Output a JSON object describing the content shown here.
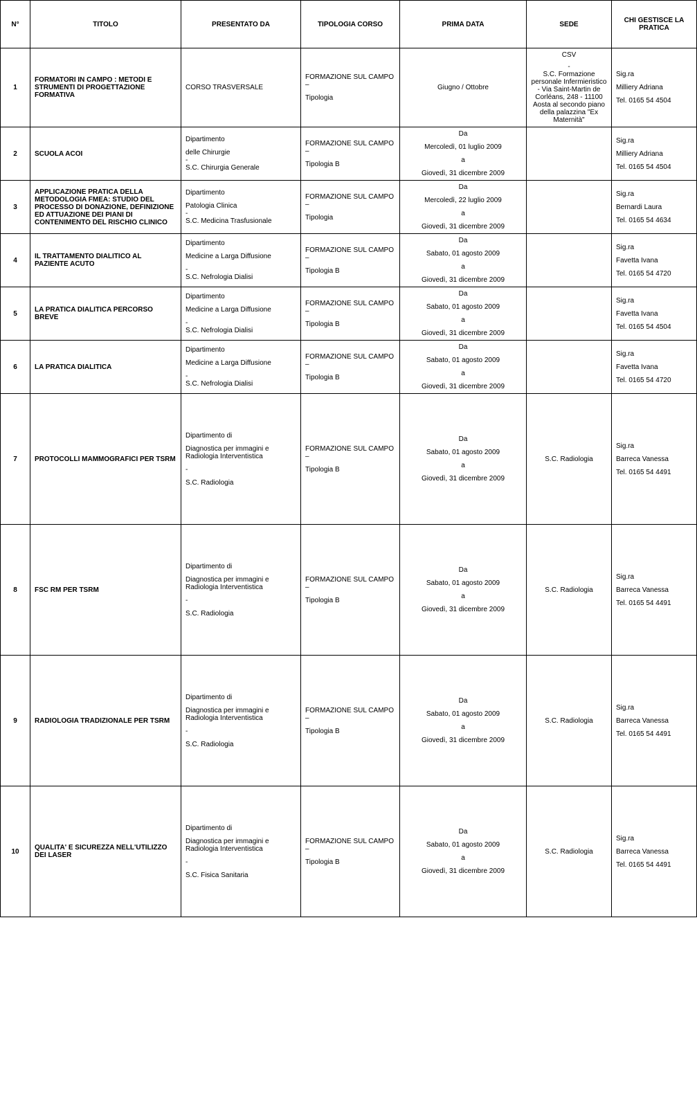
{
  "headers": {
    "n": "N°",
    "titolo": "TITOLO",
    "presentato": "PRESENTATO DA",
    "tipologia": "TIPOLOGIA CORSO",
    "prima": "PRIMA DATA",
    "sede": "SEDE",
    "chi": "CHI GESTISCE LA PRATICA"
  },
  "common": {
    "da": "Da",
    "a": "a",
    "end": "Giovedì, 31 dicembre 2009",
    "fsc": "FORMAZIONE SUL CAMPO –",
    "tipB": "Tipologia  B",
    "tip": "Tipologia",
    "dip": "Dipartimento",
    "dipDi": "Dipartimento di",
    "mld": "Medicine a Larga Diffusione",
    "dash": "-",
    "nefro": "S.C. Nefrologia Dialisi",
    "diag1": "Diagnostica per immagini e",
    "diag2": "Radiologia Interventistica",
    "radiologia": "S.C. Radiologia",
    "sigra": "Sig.ra"
  },
  "rows": [
    {
      "n": "1",
      "titolo": "FORMATORI IN CAMPO : METODI E STRUMENTI DI PROGETTAZIONE FORMATIVA",
      "pres_single": "CORSO TRASVERSALE",
      "tip_sub": "Tipologia",
      "prima_single": "Giugno / Ottobre",
      "sede_lines": [
        "CSV",
        "",
        "-",
        "S.C. Formazione personale Infermieristico - Via Saint-Martin de Corléans, 248 - 11100 Aosta al secondo piano della palazzina \"Ex Maternità\""
      ],
      "chi_name": "Milliery Adriana",
      "chi_tel": "Tel. 0165 54 4504"
    },
    {
      "n": "2",
      "titolo": "SCUOLA ACOI",
      "pres_lines": [
        "Dipartimento",
        "",
        "delle Chirurgie",
        "-",
        "S.C. Chirurgia Generale"
      ],
      "tip_sub": "Tipologia  B",
      "start": "Mercoledì, 01 luglio 2009",
      "chi_name": "Milliery Adriana",
      "chi_tel": "Tel. 0165 54 4504"
    },
    {
      "n": "3",
      "titolo": "APPLICAZIONE PRATICA DELLA METODOLOGIA FMEA: STUDIO DEL PROCESSO DI DONAZIONE, DEFINIZIONE ED ATTUAZIONE DEI PIANI DI CONTENIMENTO DEL RISCHIO CLINICO",
      "pres_lines": [
        "Dipartimento",
        "",
        "Patologia Clinica",
        "-",
        "S.C. Medicina Trasfusionale"
      ],
      "tip_sub": "Tipologia",
      "start": "Mercoledì, 22 luglio 2009",
      "chi_name": "Bernardi Laura",
      "chi_tel": "Tel. 0165 54 4634"
    },
    {
      "n": "4",
      "titolo": "IL TRATTAMENTO DIALITICO AL PAZIENTE ACUTO",
      "pres_mld": true,
      "tip_sub": "Tipologia  B",
      "start": "Sabato, 01 agosto 2009",
      "chi_name": "Favetta Ivana",
      "chi_tel": "Tel. 0165 54 4720"
    },
    {
      "n": "5",
      "titolo": "LA PRATICA DIALITICA PERCORSO BREVE",
      "pres_mld": true,
      "tip_sub": "Tipologia  B",
      "start": "Sabato, 01 agosto 2009",
      "chi_name": "Favetta Ivana",
      "chi_tel": "Tel. 0165 54 4504"
    },
    {
      "n": "6",
      "titolo": "LA PRATICA DIALITICA",
      "pres_mld": true,
      "tip_sub": "Tipologia  B",
      "start": "Sabato, 01 agosto 2009",
      "chi_name": "Favetta Ivana",
      "chi_tel": "Tel. 0165 54 4720"
    },
    {
      "n": "7",
      "titolo": "PROTOCOLLI MAMMOGRAFICI PER TSRM",
      "pres_diag": true,
      "pres_last": "S.C. Radiologia",
      "tip_sub": "Tipologia  B",
      "start": "Sabato, 01 agosto 2009",
      "sede": "S.C. Radiologia",
      "chi_name": "Barreca Vanessa",
      "chi_tel": "Tel. 0165 54 4491",
      "tall": true
    },
    {
      "n": "8",
      "titolo": "FSC RM PER TSRM",
      "pres_diag": true,
      "pres_last": "S.C. Radiologia",
      "tip_sub": "Tipologia  B",
      "start": "Sabato, 01 agosto 2009",
      "sede": "S.C. Radiologia",
      "chi_name": "Barreca Vanessa",
      "chi_tel": "Tel. 0165 54 4491",
      "tall": true
    },
    {
      "n": "9",
      "titolo": "RADIOLOGIA TRADIZIONALE PER TSRM",
      "pres_diag": true,
      "pres_last": "S.C. Radiologia",
      "tip_sub": "Tipologia  B",
      "start": "Sabato, 01 agosto 2009",
      "sede": "S.C. Radiologia",
      "chi_name": "Barreca Vanessa",
      "chi_tel": "Tel. 0165 54 4491",
      "tall": true
    },
    {
      "n": "10",
      "titolo": "QUALITA' E SICUREZZA NELL'UTILIZZO DEI LASER",
      "pres_diag": true,
      "pres_last": "S.C. Fisica Sanitaria",
      "tip_sub": "Tipologia  B",
      "start": "Sabato, 01 agosto 2009",
      "sede": "S.C. Radiologia",
      "chi_name": "Barreca Vanessa",
      "chi_tel": "Tel. 0165 54 4491",
      "tall": true
    }
  ]
}
